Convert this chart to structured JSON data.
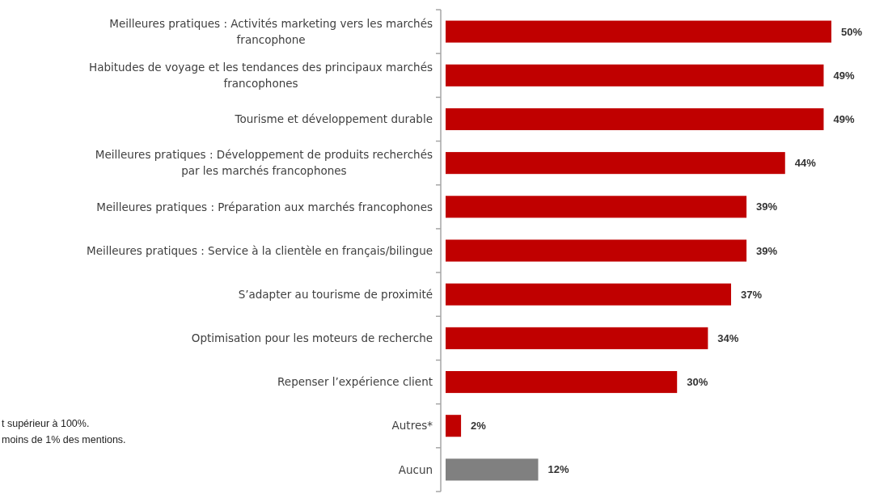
{
  "chart_data": {
    "type": "bar",
    "orientation": "horizontal",
    "categories": [
      "Meilleures pratiques : Activités marketing vers les marchés francophone",
      "Habitudes de voyage et les tendances des principaux marchés francophones",
      "Tourisme et développement durable",
      "Meilleures pratiques : Développement de produits recherchés par les marchés francophones",
      "Meilleures pratiques : Préparation aux marchés francophones",
      "Meilleures pratiques : Service à la clientèle en français/bilingue",
      "S’adapter au tourisme de proximité",
      "Optimisation pour les moteurs de recherche",
      "Repenser l’expérience client",
      "Autres*",
      "Aucun"
    ],
    "values": [
      50,
      49,
      49,
      44,
      39,
      39,
      37,
      34,
      30,
      2,
      12
    ],
    "colors": [
      "#c00000",
      "#c00000",
      "#c00000",
      "#c00000",
      "#c00000",
      "#c00000",
      "#c00000",
      "#c00000",
      "#c00000",
      "#c00000",
      "#808080"
    ],
    "value_labels": [
      "50%",
      "49%",
      "49%",
      "44%",
      "39%",
      "39%",
      "37%",
      "34%",
      "30%",
      "2%",
      "12%"
    ],
    "annotations": [
      "t supérieur à 100%.",
      "moins de 1% des mentions."
    ]
  }
}
